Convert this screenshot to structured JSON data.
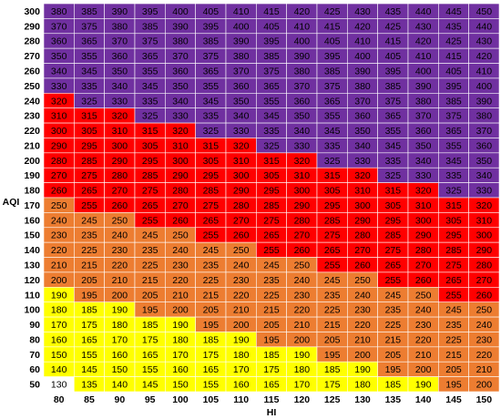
{
  "chart_data": {
    "type": "heatmap",
    "y_label": "AQI",
    "x_label": "HI",
    "rows": [
      300,
      290,
      280,
      270,
      260,
      250,
      240,
      230,
      220,
      210,
      200,
      190,
      180,
      170,
      160,
      150,
      140,
      130,
      120,
      110,
      100,
      90,
      80,
      70,
      60,
      50
    ],
    "columns": [
      80,
      85,
      90,
      95,
      100,
      105,
      110,
      115,
      120,
      125,
      130,
      135,
      140,
      145,
      150
    ],
    "color_scale": [
      {
        "max": 130,
        "color": "#ffffff"
      },
      {
        "max": 190,
        "color": "#ffff00"
      },
      {
        "max": 250,
        "color": "#ed7d31"
      },
      {
        "max": 320,
        "color": "#ff0000"
      },
      {
        "color": "#7030a0"
      }
    ],
    "cells": [
      [
        380,
        385,
        390,
        395,
        400,
        405,
        410,
        415,
        420,
        425,
        430,
        435,
        440,
        445,
        450
      ],
      [
        370,
        375,
        380,
        385,
        390,
        395,
        400,
        405,
        410,
        415,
        420,
        425,
        430,
        435,
        440
      ],
      [
        360,
        365,
        370,
        375,
        380,
        385,
        390,
        395,
        400,
        405,
        410,
        415,
        420,
        425,
        430
      ],
      [
        350,
        355,
        360,
        365,
        370,
        375,
        380,
        385,
        390,
        395,
        400,
        405,
        410,
        415,
        420
      ],
      [
        340,
        345,
        350,
        355,
        360,
        365,
        370,
        375,
        380,
        385,
        390,
        395,
        400,
        405,
        410
      ],
      [
        330,
        335,
        340,
        345,
        350,
        355,
        360,
        365,
        370,
        375,
        380,
        385,
        390,
        395,
        400
      ],
      [
        320,
        325,
        330,
        335,
        340,
        345,
        350,
        355,
        360,
        365,
        370,
        375,
        380,
        385,
        390
      ],
      [
        310,
        315,
        320,
        325,
        330,
        335,
        340,
        345,
        350,
        355,
        360,
        365,
        370,
        375,
        380
      ],
      [
        300,
        305,
        310,
        315,
        320,
        325,
        330,
        335,
        340,
        345,
        350,
        355,
        360,
        365,
        370
      ],
      [
        290,
        295,
        300,
        305,
        310,
        315,
        320,
        325,
        330,
        335,
        340,
        345,
        350,
        355,
        360
      ],
      [
        280,
        285,
        290,
        295,
        300,
        305,
        310,
        315,
        320,
        325,
        330,
        335,
        340,
        345,
        350
      ],
      [
        270,
        275,
        280,
        285,
        290,
        295,
        300,
        305,
        310,
        315,
        320,
        325,
        330,
        335,
        340
      ],
      [
        260,
        265,
        270,
        275,
        280,
        285,
        290,
        295,
        300,
        305,
        310,
        315,
        320,
        325,
        330
      ],
      [
        250,
        255,
        260,
        265,
        270,
        275,
        280,
        285,
        290,
        295,
        300,
        305,
        310,
        315,
        320
      ],
      [
        240,
        245,
        250,
        255,
        260,
        265,
        270,
        275,
        280,
        285,
        290,
        295,
        300,
        305,
        310
      ],
      [
        230,
        235,
        240,
        245,
        250,
        255,
        260,
        265,
        270,
        275,
        280,
        285,
        290,
        295,
        300
      ],
      [
        220,
        225,
        230,
        235,
        240,
        245,
        250,
        255,
        260,
        265,
        270,
        275,
        280,
        285,
        290
      ],
      [
        210,
        215,
        220,
        225,
        230,
        235,
        240,
        245,
        250,
        255,
        260,
        265,
        270,
        275,
        280
      ],
      [
        200,
        205,
        210,
        215,
        220,
        225,
        230,
        235,
        240,
        245,
        250,
        255,
        260,
        265,
        270
      ],
      [
        190,
        195,
        200,
        205,
        210,
        215,
        220,
        225,
        230,
        235,
        240,
        245,
        250,
        255,
        260
      ],
      [
        180,
        185,
        190,
        195,
        200,
        205,
        210,
        215,
        220,
        225,
        230,
        235,
        240,
        245,
        250
      ],
      [
        170,
        175,
        180,
        185,
        190,
        195,
        200,
        205,
        210,
        215,
        220,
        225,
        230,
        235,
        240
      ],
      [
        160,
        165,
        170,
        175,
        180,
        185,
        190,
        195,
        200,
        205,
        210,
        215,
        220,
        225,
        230
      ],
      [
        150,
        155,
        160,
        165,
        170,
        175,
        180,
        185,
        190,
        195,
        200,
        205,
        210,
        215,
        220
      ],
      [
        140,
        145,
        150,
        155,
        160,
        165,
        170,
        175,
        180,
        185,
        190,
        195,
        200,
        205,
        210
      ],
      [
        130,
        135,
        140,
        145,
        150,
        155,
        160,
        165,
        170,
        175,
        180,
        185,
        190,
        195,
        200
      ]
    ]
  }
}
